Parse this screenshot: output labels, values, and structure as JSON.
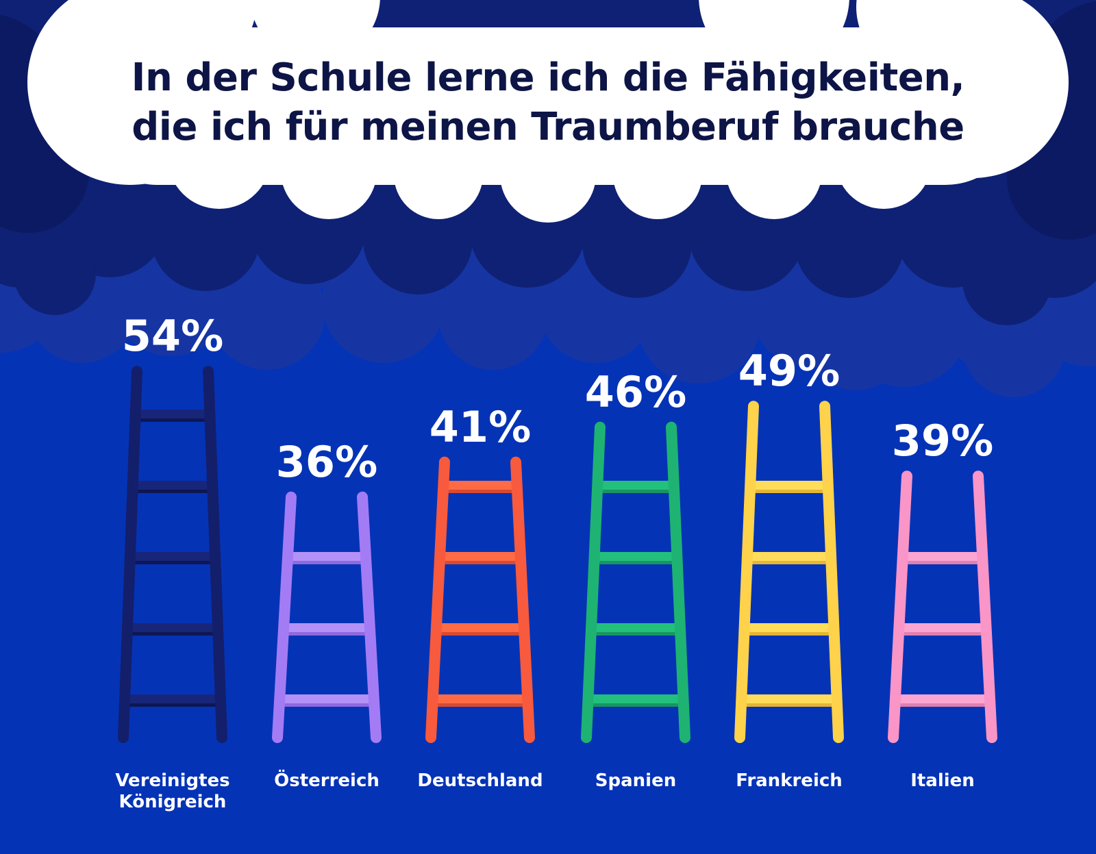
{
  "title": {
    "line1": "In der Schule lerne ich die Fähigkeiten,",
    "line2": "die ich für meinen Traumberuf brauche"
  },
  "colors": {
    "background": "#0533b6",
    "cloud_dark": "#0f2174",
    "cloud_mid": "#1635a3",
    "title_cloud": "#ffffff",
    "title_text": "#0d1446"
  },
  "chart_data": {
    "type": "bar",
    "categories": [
      [
        "Vereinigtes",
        "Königreich"
      ],
      [
        "Österreich"
      ],
      [
        "Deutschland"
      ],
      [
        "Spanien"
      ],
      [
        "Frankreich"
      ],
      [
        "Italien"
      ]
    ],
    "values": [
      54,
      36,
      41,
      46,
      49,
      39
    ],
    "labels": [
      "54%",
      "36%",
      "41%",
      "46%",
      "49%",
      "39%"
    ],
    "unit": "%",
    "mark": "ladder",
    "bar_colors": [
      "#131f6b",
      "#a37cf5",
      "#f75a3c",
      "#1eb372",
      "#fed24a",
      "#f995c7"
    ],
    "bar_rung_colors": [
      "#18267a",
      "#b491f7",
      "#ff6b45",
      "#23c07d",
      "#ffdc5a",
      "#fba5d2"
    ],
    "bar_shade_colors": [
      "#0e1754",
      "#8f69e0",
      "#d94a30",
      "#179660",
      "#e6b535",
      "#e07fb0"
    ]
  }
}
